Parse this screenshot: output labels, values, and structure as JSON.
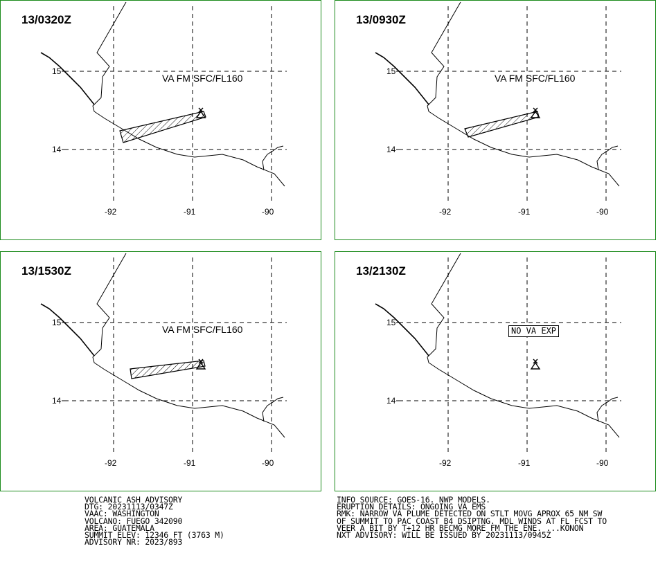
{
  "panels": [
    {
      "time": "13/0320Z",
      "label": "VA FM SFC/FL160",
      "no_va": ""
    },
    {
      "time": "13/0930Z",
      "label": "VA FM SFC/FL160",
      "no_va": ""
    },
    {
      "time": "13/1530Z",
      "label": "VA FM SFC/FL160",
      "no_va": ""
    },
    {
      "time": "13/2130Z",
      "label": "",
      "no_va": "NO VA EXP"
    }
  ],
  "axes": {
    "lat_labels": [
      "15",
      "14"
    ],
    "lon_labels": [
      "-92",
      "-91",
      "-90"
    ]
  },
  "advisory_left": [
    "VOLCANIC ASH ADVISORY",
    "DTG: 20231113/0347Z",
    "VAAC: WASHINGTON",
    "VOLCANO: FUEGO 342090",
    "AREA: GUATEMALA",
    "SUMMIT ELEV: 12346 FT (3763 M)",
    "ADVISORY NR: 2023/893"
  ],
  "advisory_right": [
    "INFO SOURCE: GOES-16. NWP MODELS.",
    "ERUPTION DETAILS: ONGOING VA EMS",
    "RMK: NARROW VA PLUME DETECTED ON STLT MOVG APROX 65 NM SW",
    "OF SUMMIT TO PAC COAST B4 DSIPTNG. MDL WINDS AT FL FCST TO",
    "VEER A BIT BY T+12 HR BECMG MORE FM THE ENE. ...KONON",
    "NXT ADVISORY: WILL BE ISSUED BY 20231113/0945Z"
  ],
  "colors": {
    "panel_border": "#1a8a1a",
    "lines": "#000000"
  }
}
